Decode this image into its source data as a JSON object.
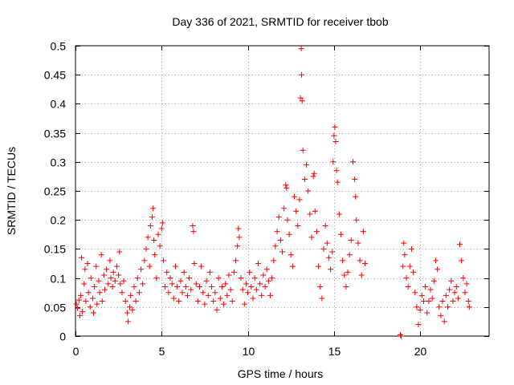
{
  "chart_data": {
    "type": "scatter",
    "title": "Day 336 of 2021, SRMTID for receiver tbob",
    "xlabel": "GPS time / hours",
    "ylabel": "SRMTID / TECUs",
    "xlim": [
      0,
      24
    ],
    "ylim": [
      0,
      0.5
    ],
    "xticks": [
      0,
      5,
      10,
      15,
      20
    ],
    "xtick_labels": [
      "0",
      "5",
      "10",
      "15",
      "20"
    ],
    "yticks": [
      0,
      0.05,
      0.1,
      0.15,
      0.2,
      0.25,
      0.3,
      0.35,
      0.4,
      0.45,
      0.5
    ],
    "ytick_labels": [
      "0",
      "0.05",
      "0.1",
      "0.15",
      "0.2",
      "0.25",
      "0.3",
      "0.35",
      "0.4",
      "0.45",
      "0.5"
    ],
    "grid": true,
    "marker": "+",
    "series": [
      {
        "name": "SRMTID",
        "color": "#ff0000",
        "points": [
          [
            0.05,
            0.055
          ],
          [
            0.12,
            0.048
          ],
          [
            0.2,
            0.062
          ],
          [
            0.25,
            0.035
          ],
          [
            0.3,
            0.07
          ],
          [
            0.35,
            0.135
          ],
          [
            0.4,
            0.042
          ],
          [
            0.5,
            0.09
          ],
          [
            0.55,
            0.115
          ],
          [
            0.6,
            0.06
          ],
          [
            0.7,
            0.125
          ],
          [
            0.75,
            0.075
          ],
          [
            0.85,
            0.05
          ],
          [
            0.9,
            0.1
          ],
          [
            1.0,
            0.065
          ],
          [
            1.05,
            0.04
          ],
          [
            1.1,
            0.085
          ],
          [
            1.2,
            0.12
          ],
          [
            1.25,
            0.055
          ],
          [
            1.35,
            0.095
          ],
          [
            1.4,
            0.075
          ],
          [
            1.5,
            0.14
          ],
          [
            1.55,
            0.06
          ],
          [
            1.65,
            0.105
          ],
          [
            1.7,
            0.08
          ],
          [
            1.8,
            0.115
          ],
          [
            1.9,
            0.09
          ],
          [
            2.0,
            0.13
          ],
          [
            2.05,
            0.1
          ],
          [
            2.15,
            0.085
          ],
          [
            2.2,
            0.11
          ],
          [
            2.3,
            0.095
          ],
          [
            2.4,
            0.12
          ],
          [
            2.5,
            0.105
          ],
          [
            2.55,
            0.145
          ],
          [
            2.6,
            0.09
          ],
          [
            2.7,
            0.075
          ],
          [
            2.8,
            0.095
          ],
          [
            2.9,
            0.06
          ],
          [
            3.0,
            0.04
          ],
          [
            3.05,
            0.025
          ],
          [
            3.15,
            0.05
          ],
          [
            3.2,
            0.07
          ],
          [
            3.3,
            0.045
          ],
          [
            3.4,
            0.085
          ],
          [
            3.5,
            0.06
          ],
          [
            3.6,
            0.1
          ],
          [
            3.7,
            0.075
          ],
          [
            3.8,
            0.115
          ],
          [
            3.9,
            0.09
          ],
          [
            4.0,
            0.13
          ],
          [
            4.1,
            0.15
          ],
          [
            4.2,
            0.17
          ],
          [
            4.3,
            0.12
          ],
          [
            4.35,
            0.19
          ],
          [
            4.45,
            0.205
          ],
          [
            4.5,
            0.22
          ],
          [
            4.55,
            0.165
          ],
          [
            4.6,
            0.14
          ],
          [
            4.7,
            0.1
          ],
          [
            4.8,
            0.175
          ],
          [
            4.9,
            0.155
          ],
          [
            5.0,
            0.185
          ],
          [
            5.05,
            0.195
          ],
          [
            5.1,
            0.13
          ],
          [
            5.2,
            0.085
          ],
          [
            5.3,
            0.11
          ],
          [
            5.4,
            0.075
          ],
          [
            5.5,
            0.1
          ],
          [
            5.6,
            0.09
          ],
          [
            5.7,
            0.065
          ],
          [
            5.8,
            0.12
          ],
          [
            5.9,
            0.085
          ],
          [
            6.0,
            0.06
          ],
          [
            6.1,
            0.095
          ],
          [
            6.2,
            0.075
          ],
          [
            6.3,
            0.11
          ],
          [
            6.4,
            0.085
          ],
          [
            6.5,
            0.07
          ],
          [
            6.6,
            0.1
          ],
          [
            6.7,
            0.08
          ],
          [
            6.8,
            0.19
          ],
          [
            6.85,
            0.18
          ],
          [
            6.9,
            0.125
          ],
          [
            7.0,
            0.09
          ],
          [
            7.1,
            0.06
          ],
          [
            7.2,
            0.085
          ],
          [
            7.3,
            0.12
          ],
          [
            7.4,
            0.075
          ],
          [
            7.5,
            0.055
          ],
          [
            7.6,
            0.095
          ],
          [
            7.7,
            0.07
          ],
          [
            7.8,
            0.11
          ],
          [
            7.9,
            0.085
          ],
          [
            8.0,
            0.06
          ],
          [
            8.1,
            0.075
          ],
          [
            8.2,
            0.045
          ],
          [
            8.3,
            0.1
          ],
          [
            8.4,
            0.065
          ],
          [
            8.5,
            0.085
          ],
          [
            8.6,
            0.055
          ],
          [
            8.7,
            0.09
          ],
          [
            8.8,
            0.07
          ],
          [
            8.9,
            0.105
          ],
          [
            9.0,
            0.08
          ],
          [
            9.1,
            0.06
          ],
          [
            9.2,
            0.11
          ],
          [
            9.3,
            0.13
          ],
          [
            9.4,
            0.155
          ],
          [
            9.45,
            0.185
          ],
          [
            9.5,
            0.17
          ],
          [
            9.6,
            0.1
          ],
          [
            9.7,
            0.08
          ],
          [
            9.8,
            0.055
          ],
          [
            9.9,
            0.09
          ],
          [
            10.0,
            0.075
          ],
          [
            10.1,
            0.11
          ],
          [
            10.2,
            0.085
          ],
          [
            10.3,
            0.065
          ],
          [
            10.4,
            0.1
          ],
          [
            10.5,
            0.08
          ],
          [
            10.6,
            0.125
          ],
          [
            10.7,
            0.09
          ],
          [
            10.8,
            0.07
          ],
          [
            10.9,
            0.105
          ],
          [
            11.0,
            0.085
          ],
          [
            11.1,
            0.115
          ],
          [
            11.2,
            0.095
          ],
          [
            11.3,
            0.07
          ],
          [
            11.4,
            0.1
          ],
          [
            11.5,
            0.13
          ],
          [
            11.6,
            0.155
          ],
          [
            11.7,
            0.18
          ],
          [
            11.8,
            0.205
          ],
          [
            11.9,
            0.165
          ],
          [
            12.0,
            0.145
          ],
          [
            12.1,
            0.22
          ],
          [
            12.2,
            0.26
          ],
          [
            12.25,
            0.255
          ],
          [
            12.3,
            0.2
          ],
          [
            12.4,
            0.175
          ],
          [
            12.5,
            0.14
          ],
          [
            12.6,
            0.12
          ],
          [
            12.7,
            0.24
          ],
          [
            12.8,
            0.215
          ],
          [
            12.9,
            0.19
          ],
          [
            13.0,
            0.235
          ],
          [
            13.05,
            0.41
          ],
          [
            13.1,
            0.495
          ],
          [
            13.12,
            0.45
          ],
          [
            13.15,
            0.405
          ],
          [
            13.2,
            0.32
          ],
          [
            13.3,
            0.27
          ],
          [
            13.4,
            0.295
          ],
          [
            13.5,
            0.25
          ],
          [
            13.6,
            0.21
          ],
          [
            13.7,
            0.17
          ],
          [
            13.8,
            0.275
          ],
          [
            13.85,
            0.28
          ],
          [
            13.9,
            0.215
          ],
          [
            14.0,
            0.18
          ],
          [
            14.1,
            0.12
          ],
          [
            14.2,
            0.085
          ],
          [
            14.3,
            0.065
          ],
          [
            14.4,
            0.15
          ],
          [
            14.5,
            0.19
          ],
          [
            14.6,
            0.16
          ],
          [
            14.7,
            0.135
          ],
          [
            14.8,
            0.115
          ],
          [
            14.9,
            0.145
          ],
          [
            14.95,
            0.3
          ],
          [
            15.0,
            0.345
          ],
          [
            15.05,
            0.36
          ],
          [
            15.1,
            0.335
          ],
          [
            15.15,
            0.285
          ],
          [
            15.2,
            0.265
          ],
          [
            15.3,
            0.21
          ],
          [
            15.4,
            0.175
          ],
          [
            15.5,
            0.13
          ],
          [
            15.6,
            0.105
          ],
          [
            15.7,
            0.085
          ],
          [
            15.8,
            0.11
          ],
          [
            15.9,
            0.14
          ],
          [
            16.0,
            0.165
          ],
          [
            16.1,
            0.3
          ],
          [
            16.2,
            0.27
          ],
          [
            16.25,
            0.24
          ],
          [
            16.3,
            0.2
          ],
          [
            16.4,
            0.16
          ],
          [
            16.5,
            0.13
          ],
          [
            16.6,
            0.105
          ],
          [
            16.7,
            0.18
          ],
          [
            16.8,
            0.125
          ],
          [
            18.85,
            0.002
          ],
          [
            18.9,
            0.0
          ],
          [
            19.0,
            0.12
          ],
          [
            19.05,
            0.16
          ],
          [
            19.1,
            0.14
          ],
          [
            19.2,
            0.1
          ],
          [
            19.3,
            0.085
          ],
          [
            19.4,
            0.12
          ],
          [
            19.5,
            0.15
          ],
          [
            19.6,
            0.11
          ],
          [
            19.7,
            0.075
          ],
          [
            19.8,
            0.05
          ],
          [
            19.9,
            0.02
          ],
          [
            20.0,
            0.045
          ],
          [
            20.1,
            0.07
          ],
          [
            20.2,
            0.06
          ],
          [
            20.3,
            0.085
          ],
          [
            20.4,
            0.04
          ],
          [
            20.5,
            0.06
          ],
          [
            20.6,
            0.08
          ],
          [
            20.7,
            0.065
          ],
          [
            20.8,
            0.095
          ],
          [
            20.9,
            0.13
          ],
          [
            21.0,
            0.115
          ],
          [
            21.1,
            0.05
          ],
          [
            21.2,
            0.035
          ],
          [
            21.3,
            0.06
          ],
          [
            21.4,
            0.025
          ],
          [
            21.5,
            0.07
          ],
          [
            21.6,
            0.05
          ],
          [
            21.7,
            0.08
          ],
          [
            21.8,
            0.095
          ],
          [
            21.9,
            0.06
          ],
          [
            22.0,
            0.075
          ],
          [
            22.1,
            0.085
          ],
          [
            22.2,
            0.065
          ],
          [
            22.3,
            0.158
          ],
          [
            22.4,
            0.13
          ],
          [
            22.5,
            0.1
          ],
          [
            22.6,
            0.075
          ],
          [
            22.7,
            0.09
          ],
          [
            22.8,
            0.06
          ],
          [
            22.85,
            0.05
          ]
        ]
      }
    ]
  }
}
